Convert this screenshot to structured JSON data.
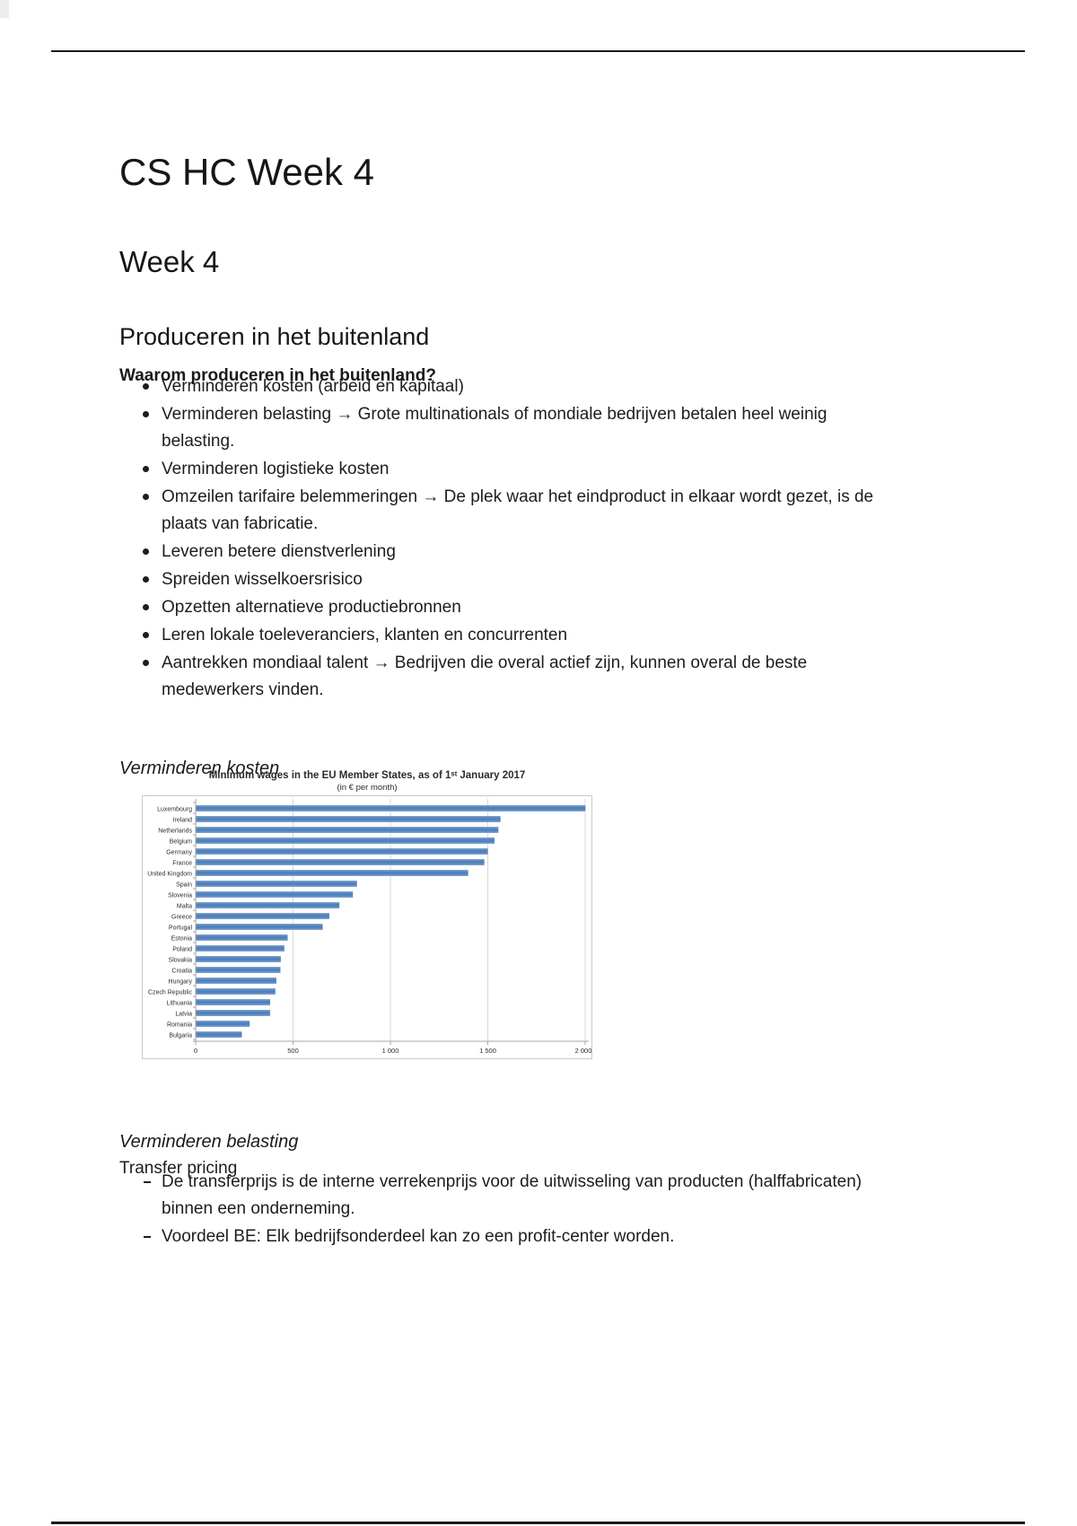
{
  "page": {
    "doc_title": "CS HC Week 4",
    "week_heading": "Week 4",
    "section_heading": "Produceren in het buitenland",
    "question_heading": "Waarom produceren in het buitenland?",
    "reasons": [
      "Verminderen kosten (arbeid en kapitaal)",
      "Verminderen belasting → Grote multinationals of mondiale bedrijven betalen heel weinig\nbelasting.",
      "Verminderen logistieke kosten",
      "Omzeilen tarifaire belemmeringen → De plek waar het eindproduct in elkaar wordt gezet, is de\nplaats van fabricatie.",
      "Leveren betere dienstverlening",
      "Spreiden wisselkoersrisico",
      "Opzetten alternatieve productiebronnen",
      "Leren lokale toeleveranciers, klanten en concurrenten",
      "Aantrekken mondiaal talent → Bedrijven die overal actief zijn, kunnen overal de beste\nmedewerkers vinden."
    ],
    "cost_heading": "Verminderen kosten",
    "tax_heading": "Verminderen belasting",
    "transfer_heading": "Transfer pricing",
    "transfer_points": [
      "De transferprijs is de interne verrekenprijs voor de uitwisseling van producten (halffabricaten)\nbinnen een onderneming.",
      "Voordeel BE: Elk bedrijfsonderdeel kan zo een profit-center worden."
    ]
  },
  "chart_data": {
    "type": "bar",
    "orientation": "horizontal",
    "title": "Minimum wages in the EU Member States, as of 1ˢᵗ January 2017",
    "subtitle": "(in € per month)",
    "categories": [
      "Luxembourg",
      "Ireland",
      "Netherlands",
      "Belgium",
      "Germany",
      "France",
      "United Kingdom",
      "Spain",
      "Slovenia",
      "Malta",
      "Greece",
      "Portugal",
      "Estonia",
      "Poland",
      "Slovakia",
      "Croatia",
      "Hungary",
      "Czech Republic",
      "Lithuania",
      "Latvia",
      "Romania",
      "Bulgaria"
    ],
    "values": [
      1999,
      1563,
      1552,
      1532,
      1498,
      1480,
      1397,
      826,
      805,
      736,
      684,
      650,
      470,
      453,
      435,
      433,
      412,
      407,
      380,
      380,
      275,
      235
    ],
    "xlabel": "",
    "ylabel": "",
    "xlim": [
      0,
      2000
    ],
    "xticks": [
      0,
      500,
      1000,
      1500,
      2000
    ],
    "xtick_labels": [
      "0",
      "500",
      "1 000",
      "1 500",
      "2 000"
    ],
    "bar_color": "#4f81bd",
    "bar_edge_color": "#85a8d0",
    "grid": true,
    "grid_color": "#d8d8d8",
    "axis_color": "#a6a6a6",
    "box_color": "#c9c9c9",
    "legend_position": "none"
  }
}
